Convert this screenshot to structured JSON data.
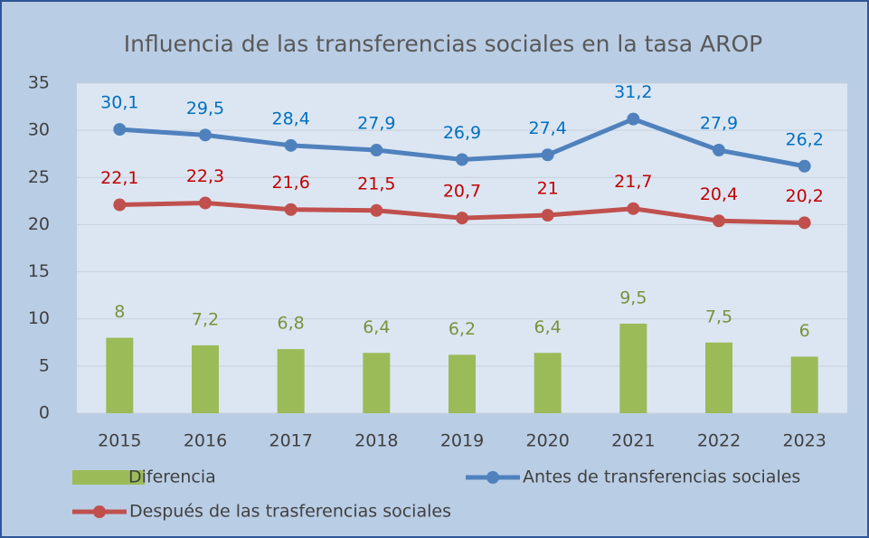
{
  "chart_data": {
    "type": "bar",
    "title": "Influencia de las transferencias sociales en la tasa AROP",
    "categories": [
      "2015",
      "2016",
      "2017",
      "2018",
      "2019",
      "2020",
      "2021",
      "2022",
      "2023"
    ],
    "ylim": [
      0,
      35
    ],
    "yticks": [
      0,
      5,
      10,
      15,
      20,
      25,
      30,
      35
    ],
    "grid": true,
    "series": [
      {
        "name": "Diferencia",
        "type": "bar",
        "color": "#9bbb59",
        "label_color": "#77933c",
        "values": [
          8,
          7.2,
          6.8,
          6.4,
          6.2,
          6.4,
          9.5,
          7.5,
          6
        ],
        "value_labels": [
          "8",
          "7,2",
          "6,8",
          "6,4",
          "6,2",
          "6,4",
          "9,5",
          "7,5",
          "6"
        ]
      },
      {
        "name": "Antes de transferencias sociales",
        "type": "line",
        "color": "#4f81bd",
        "label_color": "#0070c0",
        "values": [
          30.1,
          29.5,
          28.4,
          27.9,
          26.9,
          27.4,
          31.2,
          27.9,
          26.2
        ],
        "value_labels": [
          "30,1",
          "29,5",
          "28,4",
          "27,9",
          "26,9",
          "27,4",
          "31,2",
          "27,9",
          "26,2"
        ]
      },
      {
        "name": "Después de las trasferencias sociales",
        "type": "line",
        "color": "#c0504d",
        "label_color": "#c00000",
        "values": [
          22.1,
          22.3,
          21.6,
          21.5,
          20.7,
          21,
          21.7,
          20.4,
          20.2
        ],
        "value_labels": [
          "22,1",
          "22,3",
          "21,6",
          "21,5",
          "20,7",
          "21",
          "21,7",
          "20,4",
          "20,2"
        ]
      }
    ]
  }
}
